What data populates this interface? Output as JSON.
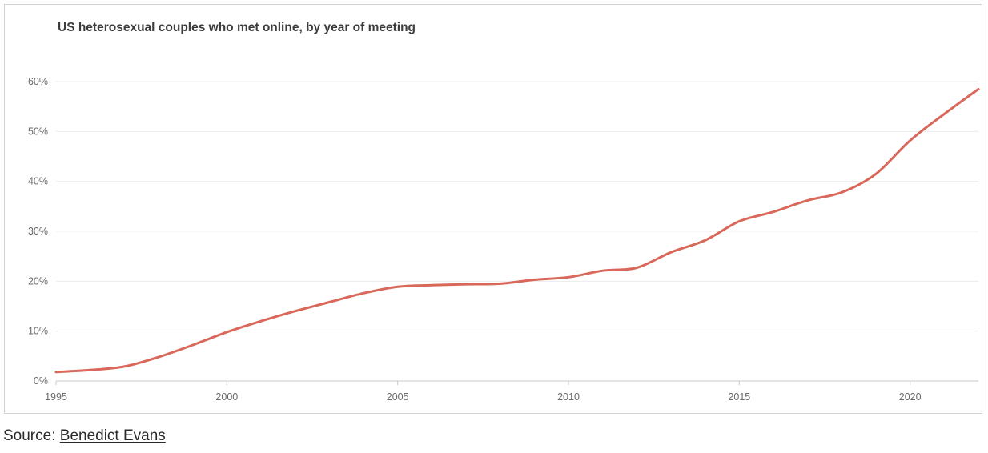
{
  "chart_data": {
    "type": "line",
    "title": "US heterosexual couples who met online, by year of meeting",
    "xlabel": "",
    "ylabel": "",
    "xlim": [
      1995,
      2022
    ],
    "ylim": [
      0,
      60
    ],
    "x_ticks": [
      1995,
      2000,
      2005,
      2010,
      2015,
      2020
    ],
    "x_tick_labels": [
      "1995",
      "2000",
      "2005",
      "2010",
      "2015",
      "2020"
    ],
    "y_ticks": [
      0,
      10,
      20,
      30,
      40,
      50,
      60
    ],
    "y_tick_labels": [
      "0%",
      "10%",
      "20%",
      "30%",
      "40%",
      "50%",
      "60%"
    ],
    "grid": "horizontal",
    "legend": "none",
    "series": [
      {
        "name": "US heterosexual couples who met online",
        "color": "#d9685a",
        "x": [
          1995,
          1996,
          1997,
          1998,
          1999,
          2000,
          2001,
          2002,
          2003,
          2004,
          2005,
          2006,
          2007,
          2008,
          2009,
          2010,
          2011,
          2012,
          2013,
          2014,
          2015,
          2016,
          2017,
          2018,
          2019,
          2020,
          2021,
          2022
        ],
        "values": [
          1.8,
          2.2,
          2.9,
          4.8,
          7.2,
          9.8,
          12.0,
          14.0,
          15.8,
          17.6,
          18.9,
          19.2,
          19.4,
          19.5,
          20.3,
          20.8,
          22.1,
          22.7,
          25.8,
          28.2,
          32.0,
          33.9,
          36.2,
          37.8,
          41.5,
          48.2,
          53.5,
          58.5
        ]
      }
    ]
  },
  "source": {
    "prefix": "Source: ",
    "link_text": "Benedict Evans"
  },
  "colors": {
    "line": "#d9685a",
    "grid": "#ececec",
    "axis": "#c8c8c8",
    "tick_text": "#6b6b6b",
    "title": "#3c3c3c"
  }
}
